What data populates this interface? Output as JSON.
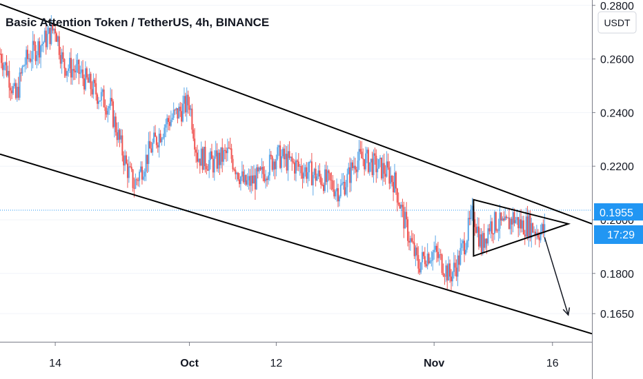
{
  "chart_data": {
    "type": "candlestick",
    "title": "Basic Attention Token / TetherUS, 4h, BINANCE",
    "currency_unit": "USDT",
    "y_ticks": [
      "0.2800",
      "0.2600",
      "0.2400",
      "0.2200",
      "0.2000",
      "0.1800",
      "0.1650"
    ],
    "ylim": [
      0.1545,
      0.282
    ],
    "x_ticks": [
      {
        "label": "14",
        "bold": false,
        "date": "2021-09-14"
      },
      {
        "label": "Oct",
        "bold": true,
        "date": "2021-10-01"
      },
      {
        "label": "12",
        "bold": false,
        "date": "2021-10-12"
      },
      {
        "label": "Nov",
        "bold": true,
        "date": "2021-11-01"
      },
      {
        "label": "16",
        "bold": false,
        "date": "2021-11-16"
      }
    ],
    "xlim": [
      "2021-09-07",
      "2021-11-21"
    ],
    "last_price": "0.1955",
    "countdown": "17:29",
    "colors": {
      "up": "#5aa7e8",
      "down": "#ef5350",
      "accent": "#2196f3",
      "line": "#000000"
    },
    "price_path": [
      [
        "2021-09-07",
        0.262
      ],
      [
        "2021-09-08",
        0.255
      ],
      [
        "2021-09-09",
        0.245
      ],
      [
        "2021-09-10",
        0.258
      ],
      [
        "2021-09-11",
        0.262
      ],
      [
        "2021-09-13",
        0.268
      ],
      [
        "2021-09-14",
        0.272
      ],
      [
        "2021-09-15",
        0.258
      ],
      [
        "2021-09-17",
        0.255
      ],
      [
        "2021-09-19",
        0.248
      ],
      [
        "2021-09-21",
        0.242
      ],
      [
        "2021-09-23",
        0.22
      ],
      [
        "2021-09-24",
        0.213
      ],
      [
        "2021-09-26",
        0.226
      ],
      [
        "2021-09-28",
        0.236
      ],
      [
        "2021-09-30",
        0.241
      ],
      [
        "2021-10-01",
        0.244
      ],
      [
        "2021-10-02",
        0.224
      ],
      [
        "2021-10-04",
        0.221
      ],
      [
        "2021-10-06",
        0.225
      ],
      [
        "2021-10-08",
        0.213
      ],
      [
        "2021-10-10",
        0.216
      ],
      [
        "2021-10-12",
        0.224
      ],
      [
        "2021-10-14",
        0.221
      ],
      [
        "2021-10-16",
        0.218
      ],
      [
        "2021-10-18",
        0.215
      ],
      [
        "2021-10-20",
        0.211
      ],
      [
        "2021-10-21",
        0.215
      ],
      [
        "2021-10-22",
        0.222
      ],
      [
        "2021-10-23",
        0.223
      ],
      [
        "2021-10-24",
        0.221
      ],
      [
        "2021-10-26",
        0.218
      ],
      [
        "2021-10-27",
        0.214
      ],
      [
        "2021-10-28",
        0.202
      ],
      [
        "2021-10-29",
        0.192
      ],
      [
        "2021-10-30",
        0.183
      ],
      [
        "2021-10-31",
        0.187
      ],
      [
        "2021-11-01",
        0.188
      ],
      [
        "2021-11-02",
        0.184
      ],
      [
        "2021-11-03",
        0.179
      ],
      [
        "2021-11-04",
        0.184
      ],
      [
        "2021-11-05",
        0.193
      ],
      [
        "2021-11-06",
        0.203
      ],
      [
        "2021-11-07",
        0.19
      ],
      [
        "2021-11-08",
        0.198
      ],
      [
        "2021-11-09",
        0.199
      ],
      [
        "2021-11-10",
        0.197
      ],
      [
        "2021-11-11",
        0.201
      ],
      [
        "2021-11-12",
        0.198
      ],
      [
        "2021-11-13",
        0.198
      ],
      [
        "2021-11-14",
        0.196
      ],
      [
        "2021-11-15",
        0.1955
      ]
    ],
    "drawings": [
      {
        "name": "channel-upper-line",
        "type": "line",
        "points": [
          [
            "2021-09-07",
            0.2805
          ],
          [
            "2021-11-21",
            0.1985
          ]
        ]
      },
      {
        "name": "channel-lower-line",
        "type": "line",
        "points": [
          [
            "2021-09-07",
            0.2245
          ],
          [
            "2021-11-21",
            0.1575
          ]
        ]
      },
      {
        "name": "triangle-pattern",
        "type": "triangle",
        "points": [
          [
            "2021-11-06",
            0.2075
          ],
          [
            "2021-11-06",
            0.1865
          ],
          [
            "2021-11-18",
            0.1985
          ]
        ]
      },
      {
        "name": "projection-arrow",
        "type": "arrow",
        "points": [
          [
            "2021-11-15",
            0.1935
          ],
          [
            "2021-11-18",
            0.1645
          ]
        ]
      }
    ]
  }
}
